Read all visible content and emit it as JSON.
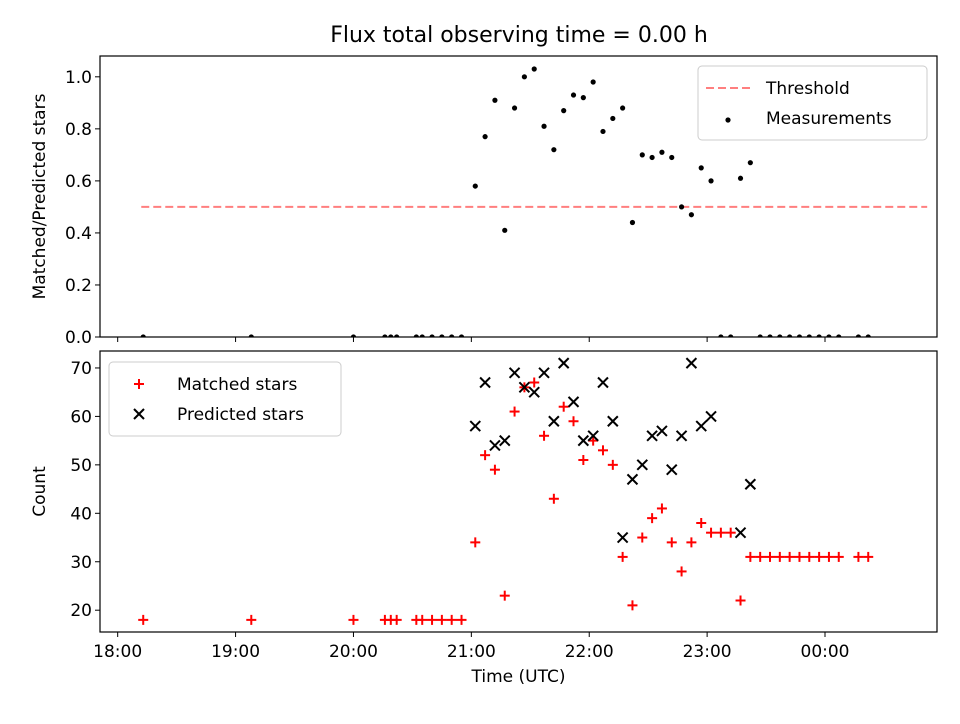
{
  "title": "Flux total observing time = 0.00 h",
  "colors": {
    "threshold": "#ff7f7f",
    "measurements": "#000000",
    "matched": "#ff0000",
    "predicted": "#000000"
  },
  "chart_data": [
    {
      "type": "scatter",
      "ylabel": "Matched/Predicted stars",
      "ylim": [
        0,
        1.08
      ],
      "yticks": [
        "0.0",
        "0.2",
        "0.4",
        "0.6",
        "0.8",
        "1.0"
      ],
      "xlim": [
        "17:51",
        "00:57"
      ],
      "legend_position": "top-right",
      "threshold": {
        "name": "Threshold",
        "value": 0.5,
        "x_range": [
          "18:12",
          "00:52"
        ]
      },
      "series": [
        {
          "name": "Measurements",
          "marker": "dot",
          "points": [
            [
              "18:13",
              0.0
            ],
            [
              "19:08",
              0.0
            ],
            [
              "20:00",
              0.0
            ],
            [
              "20:16",
              0.0
            ],
            [
              "20:19",
              0.0
            ],
            [
              "20:22",
              0.0
            ],
            [
              "20:32",
              0.0
            ],
            [
              "20:35",
              0.0
            ],
            [
              "20:40",
              0.0
            ],
            [
              "20:45",
              0.0
            ],
            [
              "20:50",
              0.0
            ],
            [
              "20:55",
              0.0
            ],
            [
              "21:02",
              0.58
            ],
            [
              "21:07",
              0.77
            ],
            [
              "21:12",
              0.91
            ],
            [
              "21:17",
              0.41
            ],
            [
              "21:22",
              0.88
            ],
            [
              "21:27",
              1.0
            ],
            [
              "21:32",
              1.03
            ],
            [
              "21:37",
              0.81
            ],
            [
              "21:42",
              0.72
            ],
            [
              "21:47",
              0.87
            ],
            [
              "21:52",
              0.93
            ],
            [
              "21:57",
              0.92
            ],
            [
              "22:02",
              0.98
            ],
            [
              "22:07",
              0.79
            ],
            [
              "22:12",
              0.84
            ],
            [
              "22:17",
              0.88
            ],
            [
              "22:22",
              0.44
            ],
            [
              "22:27",
              0.7
            ],
            [
              "22:32",
              0.69
            ],
            [
              "22:37",
              0.71
            ],
            [
              "22:42",
              0.69
            ],
            [
              "22:47",
              0.5
            ],
            [
              "22:52",
              0.47
            ],
            [
              "22:57",
              0.65
            ],
            [
              "23:02",
              0.6
            ],
            [
              "23:07",
              0.0
            ],
            [
              "23:12",
              0.0
            ],
            [
              "23:17",
              0.61
            ],
            [
              "23:22",
              0.67
            ],
            [
              "23:27",
              0.0
            ],
            [
              "23:32",
              0.0
            ],
            [
              "23:37",
              0.0
            ],
            [
              "23:42",
              0.0
            ],
            [
              "23:47",
              0.0
            ],
            [
              "23:52",
              0.0
            ],
            [
              "23:57",
              0.0
            ],
            [
              "00:02",
              0.0
            ],
            [
              "00:07",
              0.0
            ],
            [
              "00:17",
              0.0
            ],
            [
              "00:22",
              0.0
            ]
          ]
        }
      ]
    },
    {
      "type": "scatter",
      "xlabel": "Time (UTC)",
      "ylabel": "Count",
      "ylim": [
        15.5,
        73.5
      ],
      "yticks": [
        "20",
        "30",
        "40",
        "50",
        "60",
        "70"
      ],
      "xlim": [
        "17:51",
        "00:57"
      ],
      "xticks": [
        "18:00",
        "19:00",
        "20:00",
        "21:00",
        "22:00",
        "23:00",
        "00:00"
      ],
      "legend_position": "top-left",
      "series": [
        {
          "name": "Matched stars",
          "marker": "plus",
          "points": [
            [
              "18:13",
              18
            ],
            [
              "19:08",
              18
            ],
            [
              "20:00",
              18
            ],
            [
              "20:16",
              18
            ],
            [
              "20:19",
              18
            ],
            [
              "20:22",
              18
            ],
            [
              "20:32",
              18
            ],
            [
              "20:35",
              18
            ],
            [
              "20:40",
              18
            ],
            [
              "20:45",
              18
            ],
            [
              "20:50",
              18
            ],
            [
              "20:55",
              18
            ],
            [
              "21:02",
              34
            ],
            [
              "21:07",
              52
            ],
            [
              "21:12",
              49
            ],
            [
              "21:17",
              23
            ],
            [
              "21:22",
              61
            ],
            [
              "21:27",
              66
            ],
            [
              "21:32",
              67
            ],
            [
              "21:37",
              56
            ],
            [
              "21:42",
              43
            ],
            [
              "21:47",
              62
            ],
            [
              "21:52",
              59
            ],
            [
              "21:57",
              51
            ],
            [
              "22:02",
              55
            ],
            [
              "22:07",
              53
            ],
            [
              "22:12",
              50
            ],
            [
              "22:17",
              31
            ],
            [
              "22:22",
              21
            ],
            [
              "22:27",
              35
            ],
            [
              "22:32",
              39
            ],
            [
              "22:37",
              41
            ],
            [
              "22:42",
              34
            ],
            [
              "22:47",
              28
            ],
            [
              "22:52",
              34
            ],
            [
              "22:57",
              38
            ],
            [
              "23:02",
              36
            ],
            [
              "23:07",
              36
            ],
            [
              "23:12",
              36
            ],
            [
              "23:17",
              22
            ],
            [
              "23:22",
              31
            ],
            [
              "23:27",
              31
            ],
            [
              "23:32",
              31
            ],
            [
              "23:37",
              31
            ],
            [
              "23:42",
              31
            ],
            [
              "23:47",
              31
            ],
            [
              "23:52",
              31
            ],
            [
              "23:57",
              31
            ],
            [
              "00:02",
              31
            ],
            [
              "00:07",
              31
            ],
            [
              "00:17",
              31
            ],
            [
              "00:22",
              31
            ]
          ]
        },
        {
          "name": "Predicted stars",
          "marker": "x",
          "points": [
            [
              "21:02",
              58
            ],
            [
              "21:07",
              67
            ],
            [
              "21:12",
              54
            ],
            [
              "21:17",
              55
            ],
            [
              "21:22",
              69
            ],
            [
              "21:27",
              66
            ],
            [
              "21:32",
              65
            ],
            [
              "21:37",
              69
            ],
            [
              "21:42",
              59
            ],
            [
              "21:47",
              71
            ],
            [
              "21:52",
              63
            ],
            [
              "21:57",
              55
            ],
            [
              "22:02",
              56
            ],
            [
              "22:07",
              67
            ],
            [
              "22:12",
              59
            ],
            [
              "22:17",
              35
            ],
            [
              "22:22",
              47
            ],
            [
              "22:27",
              50
            ],
            [
              "22:32",
              56
            ],
            [
              "22:37",
              57
            ],
            [
              "22:42",
              49
            ],
            [
              "22:47",
              56
            ],
            [
              "22:52",
              71
            ],
            [
              "22:57",
              58
            ],
            [
              "23:02",
              60
            ],
            [
              "23:17",
              36
            ],
            [
              "23:22",
              46
            ]
          ]
        }
      ]
    }
  ]
}
